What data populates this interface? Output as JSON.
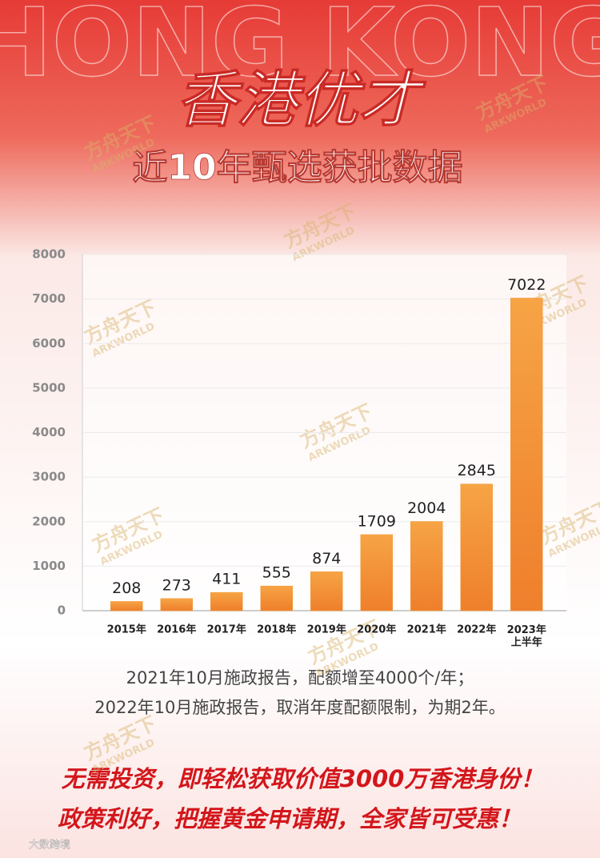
{
  "background_text": "HONG KONG",
  "title": "香港优才",
  "subtitle": "近10年甄选获批数据",
  "chart_data": {
    "type": "bar",
    "categories": [
      "2015年",
      "2016年",
      "2017年",
      "2018年",
      "2019年",
      "2020年",
      "2021年",
      "2022年",
      "2023年\n上半年"
    ],
    "values": [
      208,
      273,
      411,
      555,
      874,
      1709,
      2004,
      2845,
      7022
    ],
    "color": "#f39a35",
    "ylim": [
      0,
      8000
    ],
    "yticks": [
      0,
      1000,
      2000,
      3000,
      4000,
      5000,
      6000,
      7000,
      8000
    ],
    "grid": true
  },
  "notes": [
    "2021年10月施政报告，配额增至4000个/年；",
    "2022年10月施政报告，取消年度配额限制，为期2年。"
  ],
  "slogans": [
    "无需投资，即轻松获取价值3000万香港身份！",
    "政策利好，把握黄金申请期，全家皆可受惠！"
  ],
  "watermark": {
    "cn": "方舟天下",
    "en": "ARKWORLD"
  },
  "source_mark": "大数跨境"
}
